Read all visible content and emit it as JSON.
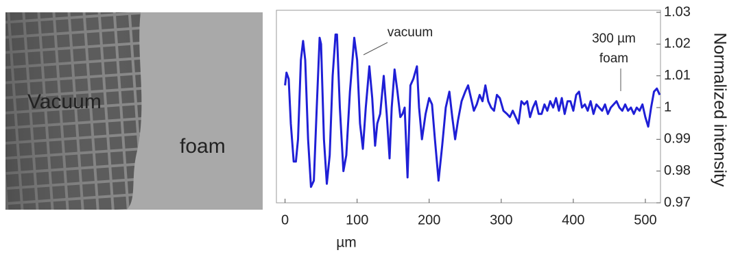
{
  "chart_data": {
    "type": "line",
    "image_labels": [
      "Vacuum",
      "foam"
    ],
    "annotations": [
      "vacuum",
      "300 µm",
      "foam"
    ],
    "xlabel": "µm",
    "ylabel": "Normalized intensity",
    "xlim": [
      -12,
      521
    ],
    "xticks": [
      0,
      100,
      200,
      300,
      400,
      500
    ],
    "ylim": [
      0.97,
      1.03
    ],
    "yticks": [
      0.97,
      0.98,
      0.99,
      1,
      1.01,
      1.02,
      1.03
    ],
    "series": [
      {
        "color": "#1f1fd6",
        "x": [
          0,
          2,
          5,
          8,
          12,
          15,
          18,
          22,
          25,
          28,
          32,
          36,
          40,
          44,
          48,
          50,
          54,
          58,
          62,
          66,
          70,
          72,
          76,
          81,
          85,
          90,
          96,
          100,
          104,
          108,
          112,
          117,
          121,
          125,
          128,
          132,
          137,
          141,
          145,
          148,
          152,
          156,
          160,
          163,
          166,
          170,
          174,
          178,
          183,
          186,
          190,
          195,
          200,
          204,
          208,
          213,
          218,
          223,
          228,
          232,
          236,
          240,
          245,
          250,
          254,
          258,
          262,
          266,
          270,
          274,
          278,
          282,
          286,
          290,
          294,
          298,
          303,
          308,
          312,
          316,
          320,
          324,
          328,
          332,
          336,
          340,
          344,
          348,
          352,
          356,
          360,
          364,
          368,
          372,
          376,
          380,
          384,
          388,
          392,
          396,
          400,
          404,
          408,
          412,
          416,
          420,
          424,
          428,
          432,
          436,
          440,
          444,
          448,
          452,
          456,
          460,
          464,
          468,
          472,
          476,
          480,
          484,
          488,
          492,
          496,
          500,
          504,
          508,
          512,
          516,
          520
        ],
        "values": [
          1.007,
          1.011,
          1.009,
          0.995,
          0.983,
          0.983,
          0.99,
          1.015,
          1.021,
          1.015,
          0.99,
          0.975,
          0.977,
          1.0,
          1.022,
          1.02,
          0.99,
          0.976,
          0.985,
          1.01,
          1.023,
          1.023,
          1.0,
          0.98,
          0.985,
          1.005,
          1.022,
          1.015,
          0.995,
          0.987,
          1.0,
          1.013,
          1.003,
          0.988,
          0.995,
          0.998,
          1.01,
          0.998,
          0.984,
          1.0,
          1.012,
          1.005,
          0.997,
          0.998,
          1.0,
          0.978,
          1.007,
          1.009,
          1.013,
          1.0,
          0.99,
          0.998,
          1.003,
          1.001,
          0.99,
          0.977,
          0.988,
          1.0,
          1.005,
          0.997,
          0.99,
          0.996,
          1.002,
          1.005,
          1.007,
          1.003,
          0.999,
          1.001,
          1.004,
          1.002,
          1.007,
          1.002,
          1.0,
          0.999,
          1.004,
          1.003,
          0.999,
          0.998,
          0.997,
          0.999,
          0.997,
          0.995,
          1.002,
          1.001,
          1.002,
          0.997,
          1.0,
          1.002,
          0.998,
          0.998,
          1.001,
          0.999,
          1.002,
          1.0,
          1.003,
          0.999,
          1.003,
          0.998,
          1.002,
          1.002,
          0.999,
          1.004,
          1.005,
          1.0,
          1.001,
          0.999,
          1.002,
          0.998,
          1.001,
          1.0,
          0.999,
          1.001,
          0.998,
          1.0,
          1.001,
          1.002,
          1.0,
          0.999,
          1.001,
          0.999,
          1.0,
          0.998,
          1.0,
          0.999,
          1.001,
          0.997,
          0.994,
          1.0,
          1.005,
          1.006,
          1.004
        ]
      }
    ]
  }
}
